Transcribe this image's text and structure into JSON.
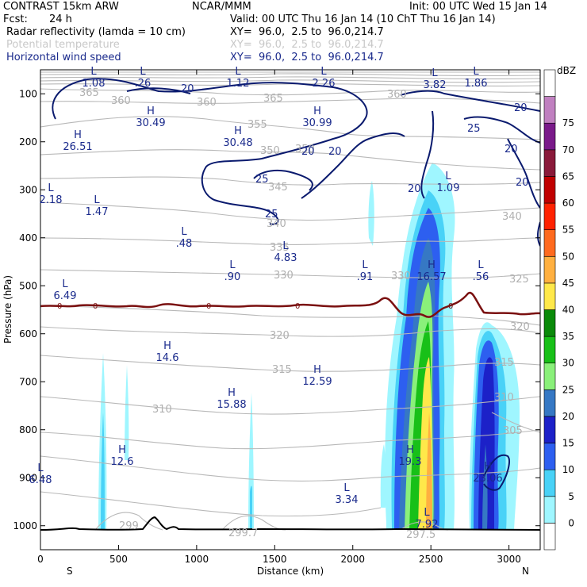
{
  "header": {
    "model": "CONTRAST 15km ARW",
    "center": "NCAR/MMM",
    "init": "Init: 00 UTC Wed 15 Jan 14",
    "fcst_label": "Fcst:",
    "fcst_value": "24 h",
    "valid": "Valid: 00 UTC Thu 16 Jan 14 (10 ChT Thu 16 Jan 14)",
    "fields": [
      {
        "name": "Radar reflectivity (lamda = 10 cm)",
        "xy": "XY=  96.0,  2.5 to  96.0,214.7",
        "faint": false
      },
      {
        "name": "Potential temperature",
        "xy": "XY=  96.0,  2.5 to  96.0,214.7",
        "faint": true
      },
      {
        "name": "Horizontal wind speed",
        "xy": "XY=  96.0,  2.5 to  96.0,214.7",
        "faint": false
      }
    ]
  },
  "colors": {
    "wind": "#0a1a6e",
    "theta": "#b0b0b0",
    "freezing": "#7a1010",
    "terrain": "#000000"
  },
  "chart_data": {
    "type": "heatmap",
    "title": "Cross-section: radar reflectivity, potential temperature, wind speed",
    "xlabel": "Distance (km)",
    "ylabel": "Pressure (hPa)",
    "xlim": [
      0,
      3200
    ],
    "ylim": [
      1050,
      50
    ],
    "x_ticks": [
      0,
      500,
      1000,
      1500,
      2000,
      2500,
      3000
    ],
    "y_ticks": [
      100,
      200,
      300,
      400,
      500,
      600,
      700,
      800,
      900,
      1000
    ],
    "endpoints": {
      "left": "S",
      "right": "N"
    },
    "colorbar": {
      "units": "dBZ",
      "levels": [
        0,
        5,
        10,
        15,
        20,
        25,
        30,
        35,
        40,
        45,
        50,
        55,
        60,
        65,
        70,
        75
      ],
      "colors": [
        "#ffffff",
        "#9ff6ff",
        "#49d2f7",
        "#2d5ff0",
        "#1c21c8",
        "#3678c4",
        "#8af07a",
        "#18c018",
        "#0a8a0a",
        "#ffe84a",
        "#ffb040",
        "#ff6a1e",
        "#ff2200",
        "#c00000",
        "#8a1a3a",
        "#7a1a8a",
        "#c080c0",
        "#ffffff"
      ]
    },
    "reflectivity_cells": [
      {
        "x0": 2230,
        "x1": 2620,
        "p0": 260,
        "p1": 1000,
        "max_dbz": 40
      },
      {
        "x0": 2740,
        "x1": 3020,
        "p0": 560,
        "p1": 1000,
        "max_dbz": 25
      },
      {
        "x0": 380,
        "x1": 410,
        "p0": 640,
        "p1": 1000,
        "max_dbz": 10
      },
      {
        "x0": 1340,
        "x1": 1360,
        "p0": 720,
        "p1": 1000,
        "max_dbz": 10
      }
    ],
    "freezing_level_label": "0",
    "theta_labels": [
      "365",
      "360",
      "360",
      "365",
      "360",
      "355",
      "350",
      "350",
      "345",
      "340",
      "340",
      "335",
      "330",
      "330",
      "325",
      "320",
      "320",
      "315",
      "315",
      "310",
      "310",
      "305",
      "299",
      "299.7",
      "297.5"
    ],
    "wind_labels": [
      "20",
      "20",
      "25",
      "20",
      "25",
      "20",
      "20",
      "20",
      "20",
      "25"
    ],
    "extrema": [
      {
        "type": "L",
        "value": "1.08"
      },
      {
        "type": "L",
        "value": ".26"
      },
      {
        "type": "L",
        "value": "1.12"
      },
      {
        "type": "L",
        "value": "2.26"
      },
      {
        "type": "L",
        "value": "3.82"
      },
      {
        "type": "L",
        "value": "1.86"
      },
      {
        "type": "H",
        "value": "30.49"
      },
      {
        "type": "H",
        "value": "30.99"
      },
      {
        "type": "H",
        "value": "26.51"
      },
      {
        "type": "H",
        "value": "30.48"
      },
      {
        "type": "L",
        "value": "2.18"
      },
      {
        "type": "L",
        "value": "1.47"
      },
      {
        "type": "L",
        "value": "1.09"
      },
      {
        "type": "L",
        "value": ".48"
      },
      {
        "type": "L",
        "value": "4.83"
      },
      {
        "type": "L",
        "value": ".90"
      },
      {
        "type": "L",
        "value": ".91"
      },
      {
        "type": "H",
        "value": "16.57"
      },
      {
        "type": "L",
        "value": ".56"
      },
      {
        "type": "L",
        "value": "6.49"
      },
      {
        "type": "H",
        "value": "14.6"
      },
      {
        "type": "H",
        "value": "12.59"
      },
      {
        "type": "H",
        "value": "15.88"
      },
      {
        "type": "H",
        "value": "12.6"
      },
      {
        "type": "H",
        "value": "19.3"
      },
      {
        "type": "H",
        "value": "23.06"
      },
      {
        "type": "L",
        "value": "3.34"
      },
      {
        "type": "L",
        "value": "7.92"
      },
      {
        "type": "L",
        "value": "6.48"
      }
    ]
  }
}
